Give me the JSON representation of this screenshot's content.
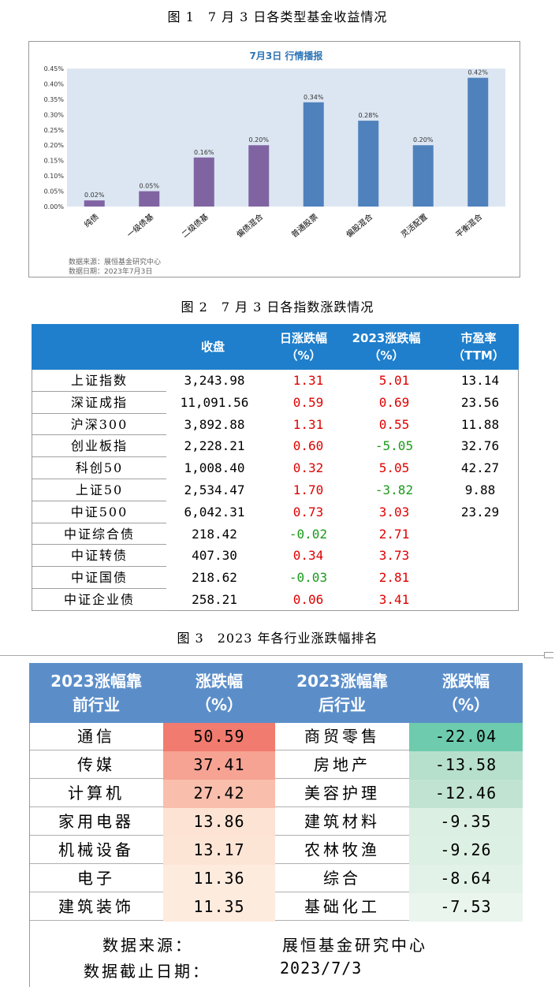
{
  "captions": {
    "fig1": "图 1　7 月 3 日各类型基金收益情况",
    "fig2": "图 2　7 月 3 日各指数涨跌情况",
    "fig3": "图 3　2023 年各行业涨跌幅排名"
  },
  "chart_data": {
    "type": "bar",
    "title": "7月3日  行情播报",
    "categories": [
      "纯债",
      "一级债基",
      "二级债基",
      "偏债混合",
      "普通股票",
      "偏股混合",
      "灵活配置",
      "平衡混合"
    ],
    "values": [
      0.02,
      0.05,
      0.16,
      0.2,
      0.34,
      0.28,
      0.2,
      0.42
    ],
    "data_labels": [
      "0.02%",
      "0.05%",
      "0.16%",
      "0.20%",
      "0.34%",
      "0.28%",
      "0.20%",
      "0.42%"
    ],
    "bar_colors": [
      "#8064a2",
      "#8064a2",
      "#8064a2",
      "#8064a2",
      "#4f81bd",
      "#4f81bd",
      "#4f81bd",
      "#4f81bd"
    ],
    "ylim": [
      0,
      0.45
    ],
    "yticks": [
      "0.00%",
      "0.05%",
      "0.10%",
      "0.15%",
      "0.20%",
      "0.25%",
      "0.30%",
      "0.35%",
      "0.40%",
      "0.45%"
    ],
    "grid": false,
    "plot_bg": "#dce6f2",
    "source_line1": "数据来源：展恒基金研究中心",
    "source_line2": "数据日期：2023年7月3日"
  },
  "table2": {
    "headers": {
      "close": "收盘",
      "daily_1": "日涨跌幅",
      "daily_2": "（%）",
      "ytd_1": "2023涨跌幅",
      "ytd_2": "（%）",
      "pe_1": "市盈率",
      "pe_2": "（TTM）"
    },
    "rows": [
      {
        "name": "上证指数",
        "close": "3,243.98",
        "daily": "1.31",
        "daily_color": "red",
        "ytd": "5.01",
        "ytd_color": "red",
        "pe": "13.14"
      },
      {
        "name": "深证成指",
        "close": "11,091.56",
        "daily": "0.59",
        "daily_color": "red",
        "ytd": "0.69",
        "ytd_color": "red",
        "pe": "23.56"
      },
      {
        "name": "沪深300",
        "close": "3,892.88",
        "daily": "1.31",
        "daily_color": "red",
        "ytd": "0.55",
        "ytd_color": "red",
        "pe": "11.88"
      },
      {
        "name": "创业板指",
        "close": "2,228.21",
        "daily": "0.60",
        "daily_color": "red",
        "ytd": "-5.05",
        "ytd_color": "green",
        "pe": "32.76"
      },
      {
        "name": "科创50",
        "close": "1,008.40",
        "daily": "0.32",
        "daily_color": "red",
        "ytd": "5.05",
        "ytd_color": "red",
        "pe": "42.27"
      },
      {
        "name": "上证50",
        "close": "2,534.47",
        "daily": "1.70",
        "daily_color": "red",
        "ytd": "-3.82",
        "ytd_color": "green",
        "pe": "9.88"
      },
      {
        "name": "中证500",
        "close": "6,042.31",
        "daily": "0.73",
        "daily_color": "red",
        "ytd": "3.03",
        "ytd_color": "red",
        "pe": "23.29"
      },
      {
        "name": "中证综合债",
        "close": "218.42",
        "daily": "-0.02",
        "daily_color": "green",
        "ytd": "2.71",
        "ytd_color": "red",
        "pe": ""
      },
      {
        "name": "中证转债",
        "close": "407.30",
        "daily": "0.34",
        "daily_color": "red",
        "ytd": "3.73",
        "ytd_color": "red",
        "pe": ""
      },
      {
        "name": "中证国债",
        "close": "218.62",
        "daily": "-0.03",
        "daily_color": "green",
        "ytd": "2.81",
        "ytd_color": "red",
        "pe": ""
      },
      {
        "name": "中证企业债",
        "close": "258.21",
        "daily": "0.06",
        "daily_color": "red",
        "ytd": "3.41",
        "ytd_color": "red",
        "pe": ""
      }
    ]
  },
  "table3": {
    "headers": {
      "top_1": "2023涨幅靠",
      "top_2": "前行业",
      "topchg_1": "涨跌幅",
      "topchg_2": "（%）",
      "bottom_1": "2023涨幅靠",
      "bottom_2": "后行业",
      "bottomchg_1": "涨跌幅",
      "bottomchg_2": "（%）"
    },
    "rows": [
      {
        "top": "通信",
        "top_value": "50.59",
        "top_bg": "#f07b6e",
        "bottom": "商贸零售",
        "bottom_value": "-22.04",
        "bottom_bg": "#6ecbae"
      },
      {
        "top": "传媒",
        "top_value": "37.41",
        "top_bg": "#f6a393",
        "bottom": "房地产",
        "bottom_value": "-13.58",
        "bottom_bg": "#b7e0cc"
      },
      {
        "top": "计算机",
        "top_value": "27.42",
        "top_bg": "#f9bfac",
        "bottom": "美容护理",
        "bottom_value": "-12.46",
        "bottom_bg": "#c1e4d2"
      },
      {
        "top": "家用电器",
        "top_value": "13.86",
        "top_bg": "#fde3d3",
        "bottom": "建筑材料",
        "bottom_value": "-9.35",
        "bottom_bg": "#dcefe3"
      },
      {
        "top": "机械设备",
        "top_value": "13.17",
        "top_bg": "#fde5d6",
        "bottom": "农林牧渔",
        "bottom_value": "-9.26",
        "bottom_bg": "#ddf0e4"
      },
      {
        "top": "电子",
        "top_value": "11.36",
        "top_bg": "#fdebde",
        "bottom": "综合",
        "bottom_value": "-8.64",
        "bottom_bg": "#e2f2e8"
      },
      {
        "top": "建筑装饰",
        "top_value": "11.35",
        "top_bg": "#fdebde",
        "bottom": "基础化工",
        "bottom_value": "-7.53",
        "bottom_bg": "#e9f5ed"
      }
    ],
    "footer": {
      "source_label": "数据来源：",
      "source_value": "展恒基金研究中心",
      "date_label": "数据截止日期：",
      "date_value": "2023/7/3"
    }
  }
}
